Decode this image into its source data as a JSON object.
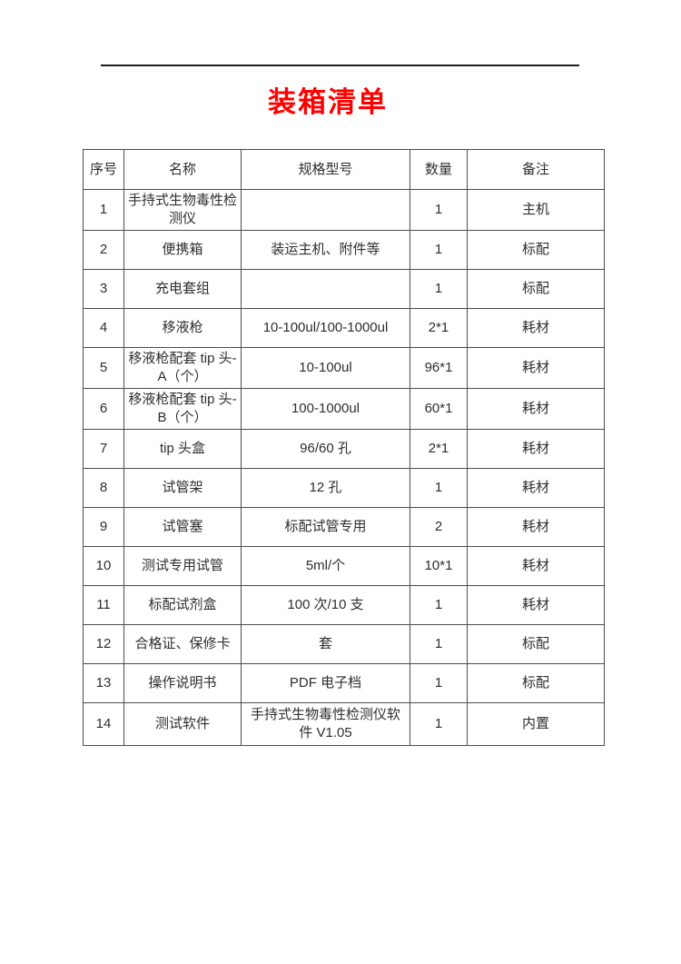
{
  "page": {
    "title": "装箱清单",
    "title_color": "#ff0000",
    "text_color": "#2e2e2e",
    "border_color": "#4d4d4d"
  },
  "table": {
    "headers": [
      "序号",
      "名称",
      "规格型号",
      "数量",
      "备注"
    ],
    "rows": [
      [
        "1",
        "手持式生物毒性检测仪",
        "",
        "1",
        "主机"
      ],
      [
        "2",
        "便携箱",
        "装运主机、附件等",
        "1",
        "标配"
      ],
      [
        "3",
        "充电套组",
        "",
        "1",
        "标配"
      ],
      [
        "4",
        "移液枪",
        "10-100ul/100-1000ul",
        "2*1",
        "耗材"
      ],
      [
        "5",
        "移液枪配套 tip 头-A（个）",
        "10-100ul",
        "96*1",
        "耗材"
      ],
      [
        "6",
        "移液枪配套 tip 头-B（个）",
        "100-1000ul",
        "60*1",
        "耗材"
      ],
      [
        "7",
        "tip 头盒",
        "96/60 孔",
        "2*1",
        "耗材"
      ],
      [
        "8",
        "试管架",
        "12 孔",
        "1",
        "耗材"
      ],
      [
        "9",
        "试管塞",
        "标配试管专用",
        "2",
        "耗材"
      ],
      [
        "10",
        "测试专用试管",
        "5ml/个",
        "10*1",
        "耗材"
      ],
      [
        "11",
        "标配试剂盒",
        "100 次/10 支",
        "1",
        "耗材"
      ],
      [
        "12",
        "合格证、保修卡",
        "套",
        "1",
        "标配"
      ],
      [
        "13",
        "操作说明书",
        "PDF 电子档",
        "1",
        "标配"
      ],
      [
        "14",
        "测试软件",
        "手持式生物毒性检测仪软件 V1.05",
        "1",
        "内置"
      ]
    ]
  }
}
